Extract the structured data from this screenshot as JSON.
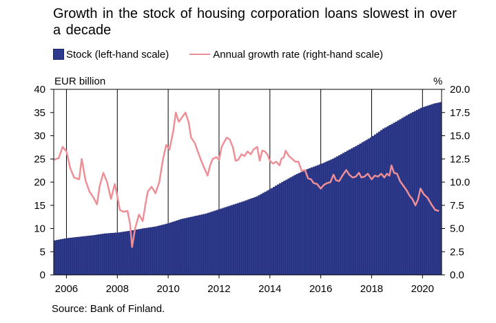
{
  "title": "Growth in the stock of housing corporation loans slowest in over a decade",
  "legend": {
    "stock": "Stock (left-hand scale)",
    "growth": "Annual growth rate (right-hand scale)"
  },
  "units": {
    "left": "EUR billion",
    "right": "%"
  },
  "source": "Source: Bank of Finland.",
  "colors": {
    "bars": "#2e3a8c",
    "bar_edge": "#1b2468",
    "line": "#ee8e96"
  },
  "chart_data": {
    "type": "bar",
    "x_start": 2005.5,
    "x_end": 2020.75,
    "x_ticks": [
      "2006",
      "2008",
      "2010",
      "2012",
      "2014",
      "2016",
      "2018",
      "2020"
    ],
    "left_axis": {
      "ylim": [
        0,
        40
      ],
      "ticks": [
        "0",
        "5",
        "10",
        "15",
        "20",
        "25",
        "30",
        "35",
        "40"
      ]
    },
    "right_axis": {
      "ylim": [
        0,
        20
      ],
      "ticks": [
        "0.0",
        "2.5",
        "5.0",
        "7.5",
        "10.0",
        "12.5",
        "15.0",
        "17.5",
        "20.0"
      ]
    },
    "grid": "vertical",
    "series": [
      {
        "name": "Stock (left-hand scale)",
        "type": "bar",
        "axis": "left",
        "points": [
          [
            2005.5,
            7.4
          ],
          [
            2006.0,
            7.9
          ],
          [
            2007.0,
            8.5
          ],
          [
            2007.5,
            8.9
          ],
          [
            2008.0,
            9.1
          ],
          [
            2008.5,
            9.5
          ],
          [
            2009.0,
            10.0
          ],
          [
            2009.5,
            10.4
          ],
          [
            2010.0,
            11.1
          ],
          [
            2010.5,
            12.0
          ],
          [
            2011.0,
            12.6
          ],
          [
            2011.5,
            13.2
          ],
          [
            2012.0,
            14.1
          ],
          [
            2012.5,
            15.0
          ],
          [
            2013.0,
            15.9
          ],
          [
            2013.5,
            16.9
          ],
          [
            2014.0,
            18.4
          ],
          [
            2014.5,
            20.0
          ],
          [
            2015.0,
            21.5
          ],
          [
            2015.5,
            22.8
          ],
          [
            2016.0,
            23.8
          ],
          [
            2016.5,
            25.0
          ],
          [
            2017.0,
            26.5
          ],
          [
            2017.5,
            28.0
          ],
          [
            2018.0,
            29.6
          ],
          [
            2018.5,
            31.5
          ],
          [
            2019.0,
            33.0
          ],
          [
            2019.5,
            34.6
          ],
          [
            2020.0,
            36.0
          ],
          [
            2020.5,
            36.9
          ],
          [
            2020.75,
            37.2
          ]
        ]
      },
      {
        "name": "Annual growth rate (right-hand scale)",
        "type": "line",
        "axis": "right",
        "points": [
          [
            2005.5,
            12.4
          ],
          [
            2005.7,
            12.6
          ],
          [
            2005.85,
            13.8
          ],
          [
            2006.0,
            13.3
          ],
          [
            2006.15,
            11.5
          ],
          [
            2006.3,
            10.5
          ],
          [
            2006.5,
            10.3
          ],
          [
            2006.6,
            12.5
          ],
          [
            2006.75,
            10.2
          ],
          [
            2006.9,
            9.0
          ],
          [
            2007.05,
            8.4
          ],
          [
            2007.2,
            7.6
          ],
          [
            2007.3,
            9.5
          ],
          [
            2007.45,
            11.0
          ],
          [
            2007.6,
            10.0
          ],
          [
            2007.75,
            8.2
          ],
          [
            2007.9,
            9.8
          ],
          [
            2008.0,
            8.5
          ],
          [
            2008.1,
            7.0
          ],
          [
            2008.25,
            6.8
          ],
          [
            2008.4,
            6.9
          ],
          [
            2008.5,
            5.5
          ],
          [
            2008.58,
            3.0
          ],
          [
            2008.7,
            5.0
          ],
          [
            2008.85,
            6.5
          ],
          [
            2009.0,
            5.8
          ],
          [
            2009.1,
            7.5
          ],
          [
            2009.2,
            9.0
          ],
          [
            2009.35,
            9.5
          ],
          [
            2009.5,
            8.8
          ],
          [
            2009.65,
            10.0
          ],
          [
            2009.8,
            12.5
          ],
          [
            2009.92,
            14.0
          ],
          [
            2010.05,
            13.5
          ],
          [
            2010.2,
            15.5
          ],
          [
            2010.3,
            17.5
          ],
          [
            2010.42,
            16.5
          ],
          [
            2010.55,
            17.0
          ],
          [
            2010.68,
            17.5
          ],
          [
            2010.8,
            16.5
          ],
          [
            2010.9,
            14.8
          ],
          [
            2011.05,
            14.2
          ],
          [
            2011.15,
            13.4
          ],
          [
            2011.3,
            12.3
          ],
          [
            2011.42,
            11.5
          ],
          [
            2011.55,
            10.7
          ],
          [
            2011.65,
            11.8
          ],
          [
            2011.75,
            12.5
          ],
          [
            2011.9,
            12.7
          ],
          [
            2012.0,
            12.4
          ],
          [
            2012.1,
            13.8
          ],
          [
            2012.2,
            14.3
          ],
          [
            2012.3,
            14.8
          ],
          [
            2012.42,
            14.6
          ],
          [
            2012.55,
            13.7
          ],
          [
            2012.65,
            12.3
          ],
          [
            2012.75,
            12.4
          ],
          [
            2012.88,
            13.0
          ],
          [
            2013.0,
            12.8
          ],
          [
            2013.12,
            13.3
          ],
          [
            2013.25,
            13.0
          ],
          [
            2013.35,
            13.5
          ],
          [
            2013.5,
            13.8
          ],
          [
            2013.6,
            12.3
          ],
          [
            2013.7,
            13.4
          ],
          [
            2013.8,
            13.3
          ],
          [
            2013.9,
            13.0
          ],
          [
            2014.0,
            12.3
          ],
          [
            2014.12,
            12.0
          ],
          [
            2014.25,
            12.2
          ],
          [
            2014.38,
            11.8
          ],
          [
            2014.45,
            12.5
          ],
          [
            2014.55,
            12.7
          ],
          [
            2014.62,
            13.4
          ],
          [
            2014.75,
            12.8
          ],
          [
            2014.88,
            12.5
          ],
          [
            2015.0,
            12.2
          ],
          [
            2015.12,
            12.2
          ],
          [
            2015.25,
            11.2
          ],
          [
            2015.38,
            11.3
          ],
          [
            2015.5,
            10.4
          ],
          [
            2015.62,
            10.3
          ],
          [
            2015.72,
            9.9
          ],
          [
            2015.85,
            9.8
          ],
          [
            2016.0,
            9.3
          ],
          [
            2016.12,
            9.7
          ],
          [
            2016.25,
            9.9
          ],
          [
            2016.38,
            10.0
          ],
          [
            2016.5,
            10.8
          ],
          [
            2016.6,
            10.2
          ],
          [
            2016.72,
            10.1
          ],
          [
            2016.85,
            10.7
          ],
          [
            2017.0,
            11.3
          ],
          [
            2017.12,
            10.8
          ],
          [
            2017.25,
            10.5
          ],
          [
            2017.38,
            10.6
          ],
          [
            2017.5,
            11.0
          ],
          [
            2017.6,
            10.5
          ],
          [
            2017.72,
            10.6
          ],
          [
            2017.85,
            10.9
          ],
          [
            2018.0,
            10.3
          ],
          [
            2018.12,
            10.7
          ],
          [
            2018.25,
            10.6
          ],
          [
            2018.38,
            10.9
          ],
          [
            2018.5,
            10.5
          ],
          [
            2018.6,
            10.9
          ],
          [
            2018.7,
            10.7
          ],
          [
            2018.78,
            11.8
          ],
          [
            2018.88,
            11.0
          ],
          [
            2019.0,
            10.9
          ],
          [
            2019.12,
            10.1
          ],
          [
            2019.25,
            9.6
          ],
          [
            2019.38,
            9.1
          ],
          [
            2019.5,
            8.5
          ],
          [
            2019.6,
            8.2
          ],
          [
            2019.72,
            7.5
          ],
          [
            2019.82,
            8.1
          ],
          [
            2019.92,
            9.3
          ],
          [
            2020.05,
            8.7
          ],
          [
            2020.2,
            8.3
          ],
          [
            2020.35,
            7.6
          ],
          [
            2020.5,
            7.0
          ],
          [
            2020.65,
            6.9
          ]
        ]
      }
    ]
  }
}
